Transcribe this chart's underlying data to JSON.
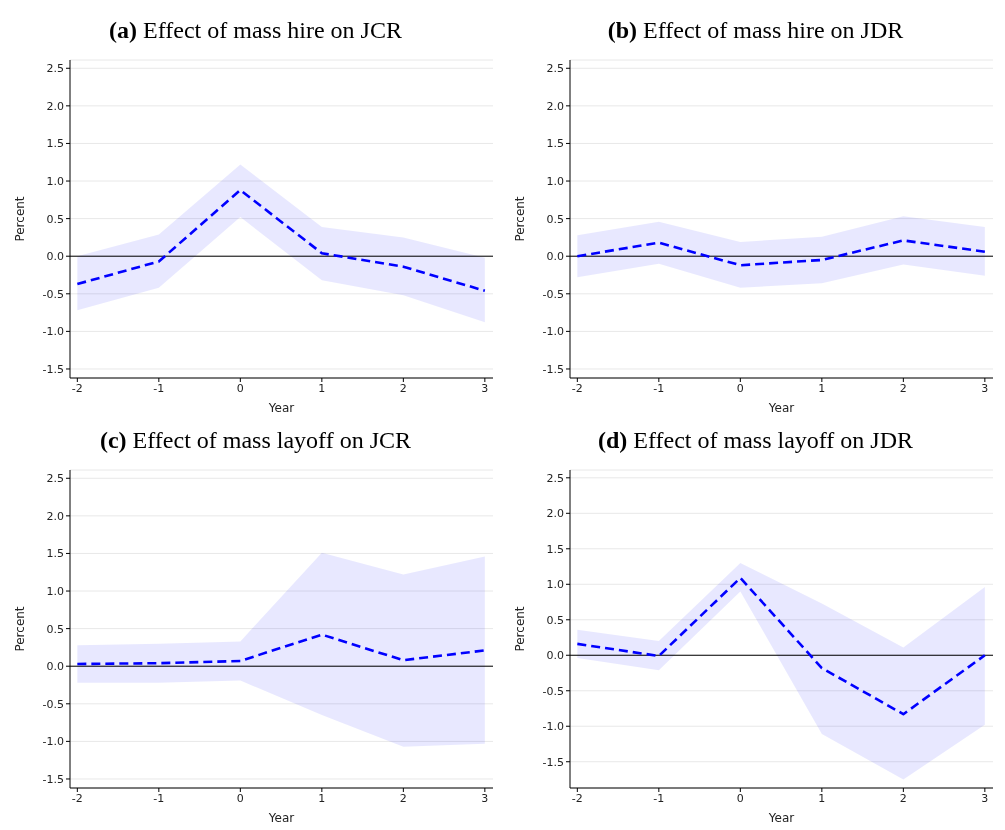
{
  "chart_data": [
    {
      "type": "line",
      "title": "(a) Effect of mass hire on JCR",
      "xlabel": "Year",
      "ylabel": "Percent",
      "x": [
        -2,
        -1,
        0,
        1,
        2,
        3
      ],
      "xlim": [
        -2.09,
        3.1
      ],
      "xticks": [
        -2,
        -1,
        0,
        1,
        2,
        3
      ],
      "ylim": [
        -1.62,
        2.61
      ],
      "yticks": [
        {
          "value": -1.5,
          "label": "-1.5"
        },
        {
          "value": -1,
          "label": "-1.0"
        },
        {
          "value": -0.5,
          "label": "-0.5"
        },
        {
          "value": 0,
          "label": "0.0"
        },
        {
          "value": 0.5,
          "label": "0.5"
        },
        {
          "value": 1,
          "label": "1.0"
        },
        {
          "value": 1.5,
          "label": "1.5"
        },
        {
          "value": 2,
          "label": "2.0"
        },
        {
          "value": 2.5,
          "label": "2.5"
        }
      ],
      "grid": "y",
      "marker": "none",
      "line_style": "dashed",
      "ref_lines": [
        {
          "axis": "y",
          "value": 0,
          "color": "#000000"
        }
      ],
      "series": [
        {
          "color": "#0000ff",
          "values": [
            -0.37,
            -0.07,
            0.88,
            0.04,
            -0.14,
            -0.46
          ],
          "lower": [
            -0.72,
            -0.42,
            0.52,
            -0.32,
            -0.52,
            -0.88
          ],
          "upper": [
            0.0,
            0.29,
            1.22,
            0.39,
            0.25,
            -0.02
          ]
        }
      ]
    },
    {
      "type": "line",
      "title": "(b) Effect of mass hire on JDR",
      "xlabel": "Year",
      "ylabel": "Percent",
      "x": [
        -2,
        -1,
        0,
        1,
        2,
        3
      ],
      "xlim": [
        -2.09,
        3.1
      ],
      "xticks": [
        -2,
        -1,
        0,
        1,
        2,
        3
      ],
      "ylim": [
        -1.62,
        2.61
      ],
      "yticks": [
        {
          "value": -1.5,
          "label": "-1.5"
        },
        {
          "value": -1,
          "label": "-1.0"
        },
        {
          "value": -0.5,
          "label": "-0.5"
        },
        {
          "value": 0,
          "label": "0.0"
        },
        {
          "value": 0.5,
          "label": "0.5"
        },
        {
          "value": 1,
          "label": "1.0"
        },
        {
          "value": 1.5,
          "label": "1.5"
        },
        {
          "value": 2,
          "label": "2.0"
        },
        {
          "value": 2.5,
          "label": "2.5"
        }
      ],
      "grid": "y",
      "marker": "none",
      "line_style": "dashed",
      "ref_lines": [
        {
          "axis": "y",
          "value": 0,
          "color": "#000000"
        }
      ],
      "series": [
        {
          "color": "#0000ff",
          "values": [
            0.0,
            0.18,
            -0.12,
            -0.05,
            0.21,
            0.06
          ],
          "lower": [
            -0.28,
            -0.1,
            -0.42,
            -0.36,
            -0.11,
            -0.26
          ],
          "upper": [
            0.28,
            0.46,
            0.19,
            0.26,
            0.53,
            0.39
          ]
        }
      ]
    },
    {
      "type": "line",
      "title": "(c) Effect of mass layoff on JCR",
      "xlabel": "Year",
      "ylabel": "Percent",
      "x": [
        -2,
        -1,
        0,
        1,
        2,
        3
      ],
      "xlim": [
        -2.09,
        3.1
      ],
      "xticks": [
        -2,
        -1,
        0,
        1,
        2,
        3
      ],
      "ylim": [
        -1.62,
        2.61
      ],
      "yticks": [
        {
          "value": -1.5,
          "label": "-1.5"
        },
        {
          "value": -1,
          "label": "-1.0"
        },
        {
          "value": -0.5,
          "label": "-0.5"
        },
        {
          "value": 0,
          "label": "0.0"
        },
        {
          "value": 0.5,
          "label": "0.5"
        },
        {
          "value": 1,
          "label": "1.0"
        },
        {
          "value": 1.5,
          "label": "1.5"
        },
        {
          "value": 2,
          "label": "2.0"
        },
        {
          "value": 2.5,
          "label": "2.5"
        }
      ],
      "grid": "y",
      "marker": "none",
      "line_style": "dashed",
      "ref_lines": [
        {
          "axis": "y",
          "value": 0,
          "color": "#000000"
        }
      ],
      "series": [
        {
          "color": "#0000ff",
          "values": [
            0.03,
            0.04,
            0.07,
            0.42,
            0.08,
            0.21
          ],
          "lower": [
            -0.22,
            -0.22,
            -0.19,
            -0.65,
            -1.07,
            -1.03
          ],
          "upper": [
            0.28,
            0.3,
            0.33,
            1.51,
            1.22,
            1.46
          ]
        }
      ]
    },
    {
      "type": "line",
      "title": "(d) Effect of mass layoff on JDR",
      "xlabel": "Year",
      "ylabel": "Percent",
      "x": [
        -2,
        -1,
        0,
        1,
        2,
        3
      ],
      "xlim": [
        -2.09,
        3.1
      ],
      "xticks": [
        -2,
        -1,
        0,
        1,
        2,
        3
      ],
      "ylim": [
        -1.87,
        2.61
      ],
      "yticks": [
        {
          "value": -1.5,
          "label": "-1.5"
        },
        {
          "value": -1,
          "label": "-1.0"
        },
        {
          "value": -0.5,
          "label": "-0.5"
        },
        {
          "value": 0,
          "label": "0.0"
        },
        {
          "value": 0.5,
          "label": "0.5"
        },
        {
          "value": 1,
          "label": "1.0"
        },
        {
          "value": 1.5,
          "label": "1.5"
        },
        {
          "value": 2,
          "label": "2.0"
        },
        {
          "value": 2.5,
          "label": "2.5"
        }
      ],
      "grid": "y",
      "marker": "none",
      "line_style": "dashed",
      "ref_lines": [
        {
          "axis": "y",
          "value": 0,
          "color": "#000000"
        }
      ],
      "series": [
        {
          "color": "#0000ff",
          "values": [
            0.16,
            -0.01,
            1.09,
            -0.18,
            -0.83,
            0.0
          ],
          "lower": [
            -0.04,
            -0.21,
            0.9,
            -1.11,
            -1.75,
            -0.98
          ],
          "upper": [
            0.36,
            0.2,
            1.3,
            0.73,
            0.11,
            0.96
          ]
        }
      ]
    }
  ]
}
